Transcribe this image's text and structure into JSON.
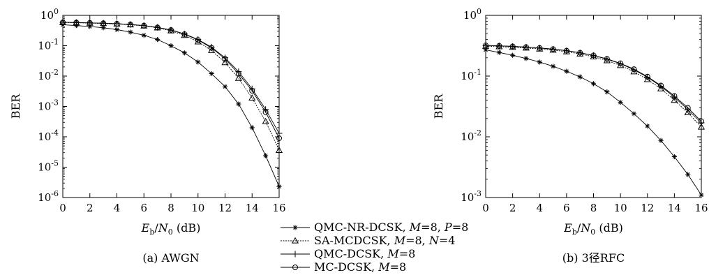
{
  "legend": {
    "entries": [
      {
        "series": "QMC-NR-DCSK",
        "pre": "QMC-NR-DCSK, ",
        "tail": "=8, ",
        "tail2": "=8",
        "p1": "M",
        "p2": "P"
      },
      {
        "series": "SA-MCDCSK",
        "pre": "SA-MCDCSK, ",
        "tail": "=8, ",
        "tail2": "=4",
        "p1": "M",
        "p2": "N"
      },
      {
        "series": "QMC-DCSK",
        "pre": "QMC-DCSK, ",
        "tail": "=8",
        "tail2": "",
        "p1": "M",
        "p2": ""
      },
      {
        "series": "MC-DCSK",
        "pre": "MC-DCSK, ",
        "tail": "=8",
        "tail2": "",
        "p1": "M",
        "p2": ""
      }
    ]
  },
  "chart_data": [
    {
      "type": "line",
      "caption": "(a) AWGN",
      "xlabel_italic": "E",
      "xlabel_sub": "b",
      "xlabel_slash": "/",
      "xlabel_italic2": "N",
      "xlabel_sub2": "0",
      "xlabel_unit": " (dB)",
      "ylabel": "BER",
      "y_scale": "log",
      "xlim": [
        0,
        16
      ],
      "ylim": [
        1e-06,
        1
      ],
      "x_ticks": [
        "0",
        "2",
        "4",
        "6",
        "8",
        "10",
        "12",
        "14",
        "16"
      ],
      "y_ticks": [
        {
          "base": "10",
          "exp": "-6",
          "value": 1e-06
        },
        {
          "base": "10",
          "exp": "-5",
          "value": 1e-05
        },
        {
          "base": "10",
          "exp": "-4",
          "value": 0.0001
        },
        {
          "base": "10",
          "exp": "-3",
          "value": 0.001
        },
        {
          "base": "10",
          "exp": "-2",
          "value": 0.01
        },
        {
          "base": "10",
          "exp": "-1",
          "value": 0.1
        },
        {
          "base": "10",
          "exp": "0",
          "value": 1
        }
      ],
      "x": [
        0,
        1,
        2,
        3,
        4,
        5,
        6,
        7,
        8,
        9,
        10,
        11,
        12,
        13,
        14,
        15,
        16
      ],
      "series": [
        {
          "name": "QMC-NR-DCSK",
          "marker": "star",
          "values": [
            0.49,
            0.46,
            0.43,
            0.39,
            0.34,
            0.28,
            0.22,
            0.16,
            0.1,
            0.058,
            0.029,
            0.012,
            0.0045,
            0.0012,
            0.0002,
            2.4e-05,
            2.3e-06
          ]
        },
        {
          "name": "SA-MCDCSK",
          "marker": "triangle",
          "values": [
            0.58,
            0.57,
            0.555,
            0.54,
            0.52,
            0.49,
            0.45,
            0.39,
            0.31,
            0.22,
            0.135,
            0.07,
            0.028,
            0.0085,
            0.0019,
            0.00032,
            3.6e-05
          ]
        },
        {
          "name": "QMC-DCSK",
          "marker": "plus",
          "values": [
            0.59,
            0.58,
            0.565,
            0.55,
            0.53,
            0.5,
            0.46,
            0.4,
            0.33,
            0.245,
            0.16,
            0.09,
            0.04,
            0.014,
            0.0038,
            0.0008,
            0.00013
          ]
        },
        {
          "name": "MC-DCSK",
          "marker": "circle",
          "values": [
            0.59,
            0.58,
            0.565,
            0.55,
            0.53,
            0.5,
            0.46,
            0.4,
            0.33,
            0.24,
            0.155,
            0.085,
            0.037,
            0.012,
            0.0033,
            0.00065,
            9e-05
          ]
        }
      ]
    },
    {
      "type": "line",
      "caption": "(b) 3径RFC",
      "xlabel_italic": "E",
      "xlabel_sub": "b",
      "xlabel_slash": "/",
      "xlabel_italic2": "N",
      "xlabel_sub2": "0",
      "xlabel_unit": " (dB)",
      "ylabel": "BER",
      "y_scale": "log",
      "xlim": [
        0,
        16
      ],
      "ylim": [
        0.001,
        1
      ],
      "x_ticks": [
        "0",
        "2",
        "4",
        "6",
        "8",
        "10",
        "12",
        "14",
        "16"
      ],
      "y_ticks": [
        {
          "base": "10",
          "exp": "-3",
          "value": 0.001
        },
        {
          "base": "10",
          "exp": "-2",
          "value": 0.01
        },
        {
          "base": "10",
          "exp": "-1",
          "value": 0.1
        },
        {
          "base": "10",
          "exp": "0",
          "value": 1
        }
      ],
      "x": [
        0,
        1,
        2,
        3,
        4,
        5,
        6,
        7,
        8,
        9,
        10,
        11,
        12,
        13,
        14,
        15,
        16
      ],
      "series": [
        {
          "name": "QMC-NR-DCSK",
          "marker": "star",
          "values": [
            0.27,
            0.245,
            0.22,
            0.195,
            0.17,
            0.145,
            0.12,
            0.097,
            0.075,
            0.055,
            0.037,
            0.024,
            0.015,
            0.0087,
            0.0047,
            0.0024,
            0.0011
          ]
        },
        {
          "name": "SA-MCDCSK",
          "marker": "triangle",
          "values": [
            0.31,
            0.305,
            0.298,
            0.29,
            0.28,
            0.268,
            0.252,
            0.232,
            0.208,
            0.18,
            0.15,
            0.118,
            0.088,
            0.062,
            0.04,
            0.025,
            0.0145
          ]
        },
        {
          "name": "QMC-DCSK",
          "marker": "plus",
          "values": [
            0.32,
            0.315,
            0.308,
            0.3,
            0.29,
            0.278,
            0.262,
            0.242,
            0.218,
            0.19,
            0.16,
            0.127,
            0.096,
            0.068,
            0.045,
            0.028,
            0.017
          ]
        },
        {
          "name": "MC-DCSK",
          "marker": "circle",
          "values": [
            0.32,
            0.315,
            0.308,
            0.3,
            0.29,
            0.278,
            0.262,
            0.242,
            0.219,
            0.192,
            0.162,
            0.13,
            0.098,
            0.07,
            0.047,
            0.03,
            0.018
          ]
        }
      ]
    }
  ]
}
